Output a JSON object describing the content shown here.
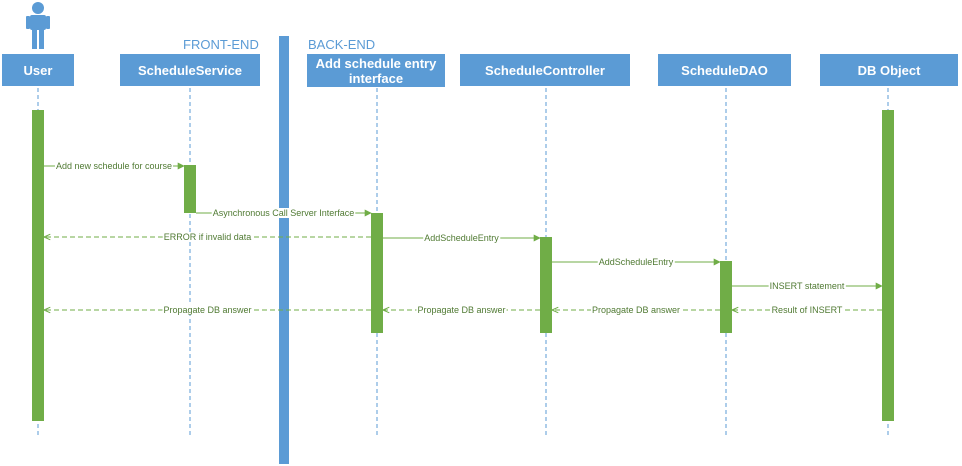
{
  "sections": {
    "front_end": "FRONT-END",
    "back_end": "BACK-END"
  },
  "participants": [
    {
      "id": "user",
      "label": "User"
    },
    {
      "id": "schedule-service",
      "label": "ScheduleService"
    },
    {
      "id": "add-schedule-entry-interface",
      "label": "Add schedule entry\ninterface"
    },
    {
      "id": "schedule-controller",
      "label": "ScheduleController"
    },
    {
      "id": "schedule-dao",
      "label": "ScheduleDAO"
    },
    {
      "id": "db-object",
      "label": "DB Object"
    }
  ],
  "messages": [
    {
      "from": "user",
      "to": "schedule-service",
      "label": "Add new schedule for course",
      "style": "solid"
    },
    {
      "from": "schedule-service",
      "to": "add-schedule-entry-interface",
      "label": "Asynchronous Call Server Interface",
      "style": "solid"
    },
    {
      "from": "add-schedule-entry-interface",
      "to": "user",
      "label": "ERROR if invalid data",
      "style": "dashed"
    },
    {
      "from": "add-schedule-entry-interface",
      "to": "schedule-controller",
      "label": "AddScheduleEntry",
      "style": "solid"
    },
    {
      "from": "schedule-controller",
      "to": "schedule-dao",
      "label": "AddScheduleEntry",
      "style": "solid"
    },
    {
      "from": "schedule-dao",
      "to": "db-object",
      "label": "INSERT statement",
      "style": "solid"
    },
    {
      "from": "db-object",
      "to": "schedule-dao",
      "label": "Result of INSERT",
      "style": "dashed"
    },
    {
      "from": "schedule-dao",
      "to": "schedule-controller",
      "label": "Propagate DB answer",
      "style": "dashed"
    },
    {
      "from": "schedule-controller",
      "to": "add-schedule-entry-interface",
      "label": "Propagate DB answer",
      "style": "dashed"
    },
    {
      "from": "add-schedule-entry-interface",
      "to": "user",
      "label": "Propagate DB answer",
      "style": "dashed"
    }
  ],
  "colors": {
    "header": "#5b9bd5",
    "activation": "#70ad47",
    "message": "#70ad47",
    "lifeline": "#5b9bd5"
  },
  "icons": {
    "actor": "person-icon"
  }
}
